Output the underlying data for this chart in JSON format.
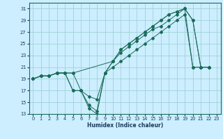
{
  "xlabel": "Humidex (Indice chaleur)",
  "bg_color": "#cceeff",
  "grid_color": "#99cccc",
  "line_color": "#1a6b5a",
  "xlim": [
    -0.5,
    23.5
  ],
  "ylim": [
    13,
    32
  ],
  "xticks": [
    0,
    1,
    2,
    3,
    4,
    5,
    6,
    7,
    8,
    9,
    10,
    11,
    12,
    13,
    14,
    15,
    16,
    17,
    18,
    19,
    20,
    21,
    22,
    23
  ],
  "yticks": [
    13,
    15,
    17,
    19,
    21,
    23,
    25,
    27,
    29,
    31
  ],
  "line1_x": [
    0,
    1,
    2,
    3,
    4,
    5,
    10,
    11,
    12,
    13,
    14,
    15,
    16,
    17,
    18,
    19,
    20,
    21,
    22
  ],
  "line1_y": [
    19,
    19.5,
    19.5,
    20,
    20,
    20,
    22,
    23.5,
    24.5,
    25.5,
    26.5,
    27.5,
    28,
    29,
    30,
    31,
    29,
    21,
    21
  ],
  "line2_x": [
    0,
    1,
    2,
    3,
    4,
    5,
    6,
    7,
    8,
    9,
    10,
    11,
    12,
    13,
    14,
    15,
    16,
    17,
    18,
    19,
    20,
    21,
    22
  ],
  "line2_y": [
    19,
    19.5,
    19.5,
    20,
    20,
    20,
    17,
    16,
    15.5,
    20,
    22,
    24,
    25,
    26,
    27,
    28,
    29,
    30,
    30.5,
    31,
    29,
    21,
    21
  ],
  "line3_x": [
    0,
    1,
    2,
    3,
    4,
    5,
    6,
    7,
    8,
    9,
    10,
    11,
    12,
    13,
    14,
    15,
    16,
    17,
    18,
    19,
    20,
    21,
    22
  ],
  "line3_y": [
    19,
    19.5,
    19.5,
    20,
    20,
    17,
    17,
    14.5,
    13.5,
    20,
    22,
    24,
    25,
    26,
    27,
    28,
    29,
    30,
    30.5,
    31,
    21,
    21,
    21
  ],
  "line4_x": [
    0,
    1,
    2,
    3,
    4,
    5,
    6,
    7,
    8,
    9,
    10,
    11,
    12,
    13,
    14,
    15,
    16,
    17,
    18,
    19,
    20,
    21,
    22
  ],
  "line4_y": [
    19,
    19.5,
    19.5,
    20,
    20,
    17,
    17,
    14,
    13,
    20,
    21,
    22,
    23,
    24,
    25,
    26,
    27,
    28,
    29,
    30,
    21,
    21,
    21
  ]
}
